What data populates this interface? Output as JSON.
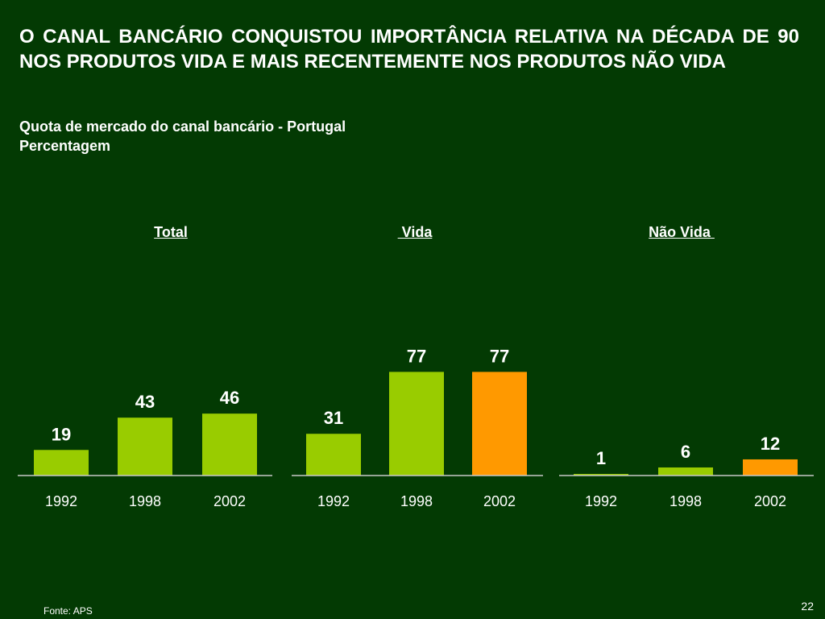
{
  "title": "O CANAL BANCÁRIO CONQUISTOU IMPORTÂNCIA RELATIVA NA DÉCADA DE 90 NOS PRODUTOS VIDA E MAIS RECENTEMENTE NOS PRODUTOS NÃO VIDA",
  "subtitle_line1": "Quota de mercado do canal bancário - Portugal",
  "subtitle_line2": "Percentagem",
  "footer_source": "Fonte: APS",
  "page_number": "22",
  "colors": {
    "background": "#033a03",
    "bar_green": "#99cc00",
    "bar_orange": "#ff9900",
    "axis": "#c8c8c8",
    "text": "#ffffff"
  },
  "chart_data": [
    {
      "type": "bar",
      "title": "Total",
      "categories": [
        "1992",
        "1998",
        "2002"
      ],
      "values": [
        19,
        43,
        46
      ],
      "bar_colors": [
        "#99cc00",
        "#99cc00",
        "#99cc00"
      ],
      "ylim": [
        0,
        100
      ]
    },
    {
      "type": "bar",
      "title": " Vida",
      "categories": [
        "1992",
        "1998",
        "2002"
      ],
      "values": [
        31,
        77,
        77
      ],
      "bar_colors": [
        "#99cc00",
        "#99cc00",
        "#ff9900"
      ],
      "ylim": [
        0,
        100
      ]
    },
    {
      "type": "bar",
      "title": "Não Vida ",
      "categories": [
        "1992",
        "1998",
        "2002"
      ],
      "values": [
        1,
        6,
        12
      ],
      "bar_colors": [
        "#99cc00",
        "#99cc00",
        "#ff9900"
      ],
      "ylim": [
        0,
        100
      ]
    }
  ]
}
